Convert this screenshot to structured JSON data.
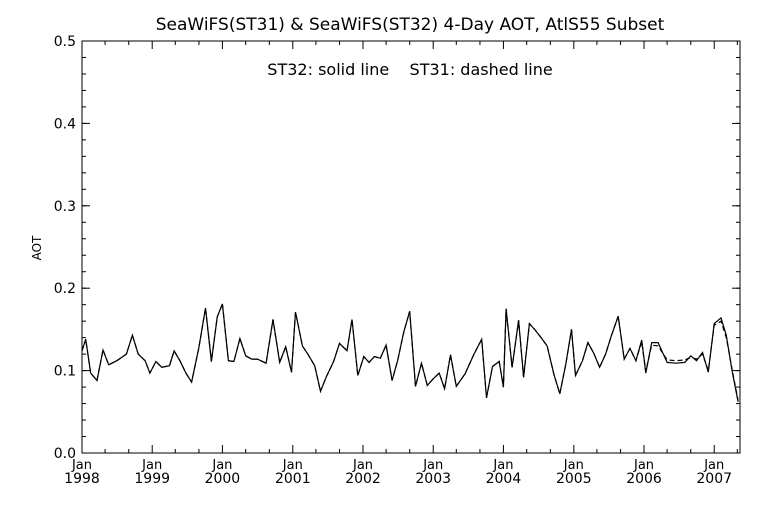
{
  "chart_data": {
    "type": "line",
    "title": "SeaWiFS(ST31) & SeaWiFS(ST32) 4-Day AOT, AtlS55 Subset",
    "annotation": "ST32: solid line    ST31: dashed line",
    "ylabel": "AOT",
    "xlabel": "",
    "ylim": [
      0.0,
      0.5
    ],
    "xlim": [
      "1998-01-01",
      "2007-05-15"
    ],
    "yticks": [
      "0.0",
      "0.1",
      "0.2",
      "0.3",
      "0.4",
      "0.5"
    ],
    "xticks": [
      {
        "month": "Jan",
        "year": "1998",
        "date": "1998-01-01"
      },
      {
        "month": "Jan",
        "year": "1999",
        "date": "1999-01-01"
      },
      {
        "month": "Jan",
        "year": "2000",
        "date": "2000-01-01"
      },
      {
        "month": "Jan",
        "year": "2001",
        "date": "2001-01-01"
      },
      {
        "month": "Jan",
        "year": "2002",
        "date": "2002-01-01"
      },
      {
        "month": "Jan",
        "year": "2003",
        "date": "2003-01-01"
      },
      {
        "month": "Jan",
        "year": "2004",
        "date": "2004-01-01"
      },
      {
        "month": "Jan",
        "year": "2005",
        "date": "2005-01-01"
      },
      {
        "month": "Jan",
        "year": "2006",
        "date": "2006-01-01"
      },
      {
        "month": "Jan",
        "year": "2007",
        "date": "2007-01-01"
      }
    ],
    "grid": false,
    "series": [
      {
        "name": "ST32",
        "style": "solid",
        "color": "#000000",
        "points": [
          [
            "1998-01-01",
            0.124
          ],
          [
            "1998-01-20",
            0.138
          ],
          [
            "1998-02-15",
            0.097
          ],
          [
            "1998-03-20",
            0.088
          ],
          [
            "1998-04-20",
            0.125
          ],
          [
            "1998-05-20",
            0.107
          ],
          [
            "1998-07-01",
            0.112
          ],
          [
            "1998-08-20",
            0.12
          ],
          [
            "1998-09-20",
            0.143
          ],
          [
            "1998-10-20",
            0.12
          ],
          [
            "1998-11-25",
            0.112
          ],
          [
            "1998-12-20",
            0.097
          ],
          [
            "1999-01-20",
            0.111
          ],
          [
            "1999-02-20",
            0.104
          ],
          [
            "1999-04-01",
            0.106
          ],
          [
            "1999-04-25",
            0.124
          ],
          [
            "1999-05-25",
            0.112
          ],
          [
            "1999-06-25",
            0.097
          ],
          [
            "1999-07-25",
            0.086
          ],
          [
            "1999-09-01",
            0.128
          ],
          [
            "1999-10-05",
            0.176
          ],
          [
            "1999-11-05",
            0.111
          ],
          [
            "1999-12-05",
            0.165
          ],
          [
            "2000-01-01",
            0.181
          ],
          [
            "2000-02-01",
            0.112
          ],
          [
            "2000-03-01",
            0.111
          ],
          [
            "2000-04-01",
            0.139
          ],
          [
            "2000-05-01",
            0.118
          ],
          [
            "2000-06-01",
            0.114
          ],
          [
            "2000-07-01",
            0.114
          ],
          [
            "2000-08-15",
            0.109
          ],
          [
            "2000-09-20",
            0.162
          ],
          [
            "2000-10-25",
            0.11
          ],
          [
            "2000-11-25",
            0.129
          ],
          [
            "2000-12-25",
            0.098
          ],
          [
            "2001-01-15",
            0.171
          ],
          [
            "2001-02-20",
            0.13
          ],
          [
            "2001-03-20",
            0.12
          ],
          [
            "2001-04-25",
            0.106
          ],
          [
            "2001-05-25",
            0.075
          ],
          [
            "2001-06-25",
            0.093
          ],
          [
            "2001-08-01",
            0.111
          ],
          [
            "2001-09-01",
            0.133
          ],
          [
            "2001-10-10",
            0.124
          ],
          [
            "2001-11-05",
            0.162
          ],
          [
            "2001-12-05",
            0.094
          ],
          [
            "2002-01-05",
            0.117
          ],
          [
            "2002-02-01",
            0.11
          ],
          [
            "2002-03-01",
            0.117
          ],
          [
            "2002-04-01",
            0.115
          ],
          [
            "2002-05-01",
            0.131
          ],
          [
            "2002-06-01",
            0.088
          ],
          [
            "2002-07-01",
            0.113
          ],
          [
            "2002-08-01",
            0.147
          ],
          [
            "2002-09-01",
            0.172
          ],
          [
            "2002-10-01",
            0.081
          ],
          [
            "2002-11-01",
            0.109
          ],
          [
            "2002-12-01",
            0.082
          ],
          [
            "2003-01-01",
            0.09
          ],
          [
            "2003-02-01",
            0.097
          ],
          [
            "2003-03-01",
            0.078
          ],
          [
            "2003-04-01",
            0.119
          ],
          [
            "2003-05-01",
            0.081
          ],
          [
            "2003-06-15",
            0.096
          ],
          [
            "2003-08-01",
            0.12
          ],
          [
            "2003-09-10",
            0.138
          ],
          [
            "2003-10-05",
            0.067
          ],
          [
            "2003-11-05",
            0.105
          ],
          [
            "2003-12-10",
            0.111
          ],
          [
            "2004-01-01",
            0.08
          ],
          [
            "2004-01-15",
            0.175
          ],
          [
            "2004-02-15",
            0.104
          ],
          [
            "2004-03-20",
            0.161
          ],
          [
            "2004-04-15",
            0.092
          ],
          [
            "2004-05-15",
            0.157
          ],
          [
            "2004-06-15",
            0.149
          ],
          [
            "2004-07-15",
            0.14
          ],
          [
            "2004-08-15",
            0.13
          ],
          [
            "2004-09-20",
            0.095
          ],
          [
            "2004-10-20",
            0.072
          ],
          [
            "2004-11-20",
            0.107
          ],
          [
            "2004-12-20",
            0.15
          ],
          [
            "2005-01-10",
            0.094
          ],
          [
            "2005-02-15",
            0.112
          ],
          [
            "2005-03-15",
            0.134
          ],
          [
            "2005-04-15",
            0.121
          ],
          [
            "2005-05-15",
            0.104
          ],
          [
            "2005-06-15",
            0.12
          ],
          [
            "2005-07-15",
            0.142
          ],
          [
            "2005-08-20",
            0.166
          ],
          [
            "2005-09-20",
            0.114
          ],
          [
            "2005-10-20",
            0.127
          ],
          [
            "2005-11-20",
            0.112
          ],
          [
            "2005-12-20",
            0.137
          ],
          [
            "2006-01-10",
            0.097
          ],
          [
            "2006-02-10",
            0.134
          ],
          [
            "2006-03-15",
            0.134
          ],
          [
            "2006-05-01",
            0.11
          ],
          [
            "2006-06-15",
            0.109
          ],
          [
            "2006-08-01",
            0.11
          ],
          [
            "2006-09-01",
            0.118
          ],
          [
            "2006-10-01",
            0.112
          ],
          [
            "2006-11-01",
            0.122
          ],
          [
            "2006-12-01",
            0.098
          ],
          [
            "2007-01-01",
            0.157
          ],
          [
            "2007-02-05",
            0.164
          ],
          [
            "2007-03-05",
            0.143
          ],
          [
            "2007-04-05",
            0.098
          ],
          [
            "2007-05-05",
            0.062
          ]
        ]
      },
      {
        "name": "ST31",
        "style": "dashed",
        "color": "#000000",
        "points": [
          [
            "1998-01-01",
            0.124
          ],
          [
            "1998-01-20",
            0.138
          ],
          [
            "1998-02-15",
            0.097
          ],
          [
            "1998-03-20",
            0.088
          ],
          [
            "1998-04-20",
            0.125
          ],
          [
            "1998-05-20",
            0.107
          ],
          [
            "1998-07-01",
            0.112
          ],
          [
            "1998-08-20",
            0.12
          ],
          [
            "1998-09-20",
            0.143
          ],
          [
            "1998-10-20",
            0.12
          ],
          [
            "1998-11-25",
            0.112
          ],
          [
            "1998-12-20",
            0.097
          ],
          [
            "1999-01-20",
            0.111
          ],
          [
            "1999-02-20",
            0.104
          ],
          [
            "1999-04-01",
            0.106
          ],
          [
            "1999-04-25",
            0.124
          ],
          [
            "1999-05-25",
            0.112
          ],
          [
            "1999-06-25",
            0.097
          ],
          [
            "1999-07-25",
            0.086
          ],
          [
            "1999-09-01",
            0.128
          ],
          [
            "1999-10-05",
            0.176
          ],
          [
            "1999-11-05",
            0.111
          ],
          [
            "1999-12-05",
            0.165
          ],
          [
            "2000-01-01",
            0.181
          ],
          [
            "2000-02-01",
            0.112
          ],
          [
            "2000-03-01",
            0.111
          ],
          [
            "2000-04-01",
            0.139
          ],
          [
            "2000-05-01",
            0.118
          ],
          [
            "2000-06-01",
            0.114
          ],
          [
            "2000-07-01",
            0.114
          ],
          [
            "2000-08-15",
            0.109
          ],
          [
            "2000-09-20",
            0.162
          ],
          [
            "2000-10-25",
            0.11
          ],
          [
            "2000-11-25",
            0.129
          ],
          [
            "2000-12-25",
            0.098
          ],
          [
            "2001-01-15",
            0.171
          ],
          [
            "2001-02-20",
            0.13
          ],
          [
            "2001-03-20",
            0.12
          ],
          [
            "2001-04-25",
            0.106
          ],
          [
            "2001-05-25",
            0.075
          ],
          [
            "2001-06-25",
            0.093
          ],
          [
            "2001-08-01",
            0.111
          ],
          [
            "2001-09-01",
            0.133
          ],
          [
            "2001-10-10",
            0.124
          ],
          [
            "2001-11-05",
            0.162
          ],
          [
            "2001-12-05",
            0.094
          ],
          [
            "2002-01-05",
            0.117
          ],
          [
            "2002-02-01",
            0.11
          ],
          [
            "2002-03-01",
            0.117
          ],
          [
            "2002-04-01",
            0.115
          ],
          [
            "2002-05-01",
            0.131
          ],
          [
            "2002-06-01",
            0.088
          ],
          [
            "2002-07-01",
            0.113
          ],
          [
            "2002-08-01",
            0.147
          ],
          [
            "2002-09-01",
            0.172
          ],
          [
            "2002-10-01",
            0.081
          ],
          [
            "2002-11-01",
            0.109
          ],
          [
            "2002-12-01",
            0.082
          ],
          [
            "2003-01-01",
            0.09
          ],
          [
            "2003-02-01",
            0.097
          ],
          [
            "2003-03-01",
            0.078
          ],
          [
            "2003-04-01",
            0.119
          ],
          [
            "2003-05-01",
            0.081
          ],
          [
            "2003-06-15",
            0.096
          ],
          [
            "2003-08-01",
            0.12
          ],
          [
            "2003-09-10",
            0.138
          ],
          [
            "2003-10-05",
            0.067
          ],
          [
            "2003-11-05",
            0.105
          ],
          [
            "2003-12-10",
            0.111
          ],
          [
            "2004-01-01",
            0.08
          ],
          [
            "2004-01-15",
            0.175
          ],
          [
            "2004-02-15",
            0.104
          ],
          [
            "2004-03-20",
            0.161
          ],
          [
            "2004-04-15",
            0.092
          ],
          [
            "2004-05-15",
            0.157
          ],
          [
            "2004-06-15",
            0.149
          ],
          [
            "2004-07-15",
            0.14
          ],
          [
            "2004-08-15",
            0.13
          ],
          [
            "2004-09-20",
            0.095
          ],
          [
            "2004-10-20",
            0.072
          ],
          [
            "2004-11-20",
            0.107
          ],
          [
            "2004-12-20",
            0.15
          ],
          [
            "2005-01-10",
            0.094
          ],
          [
            "2005-02-15",
            0.112
          ],
          [
            "2005-03-15",
            0.134
          ],
          [
            "2005-04-15",
            0.121
          ],
          [
            "2005-05-15",
            0.104
          ],
          [
            "2005-06-15",
            0.12
          ],
          [
            "2005-07-15",
            0.142
          ],
          [
            "2005-08-20",
            0.166
          ],
          [
            "2005-09-20",
            0.114
          ],
          [
            "2005-10-20",
            0.127
          ],
          [
            "2005-11-20",
            0.112
          ],
          [
            "2005-12-20",
            0.135
          ],
          [
            "2006-01-10",
            0.099
          ],
          [
            "2006-02-10",
            0.131
          ],
          [
            "2006-03-15",
            0.13
          ],
          [
            "2006-05-01",
            0.113
          ],
          [
            "2006-06-15",
            0.112
          ],
          [
            "2006-08-01",
            0.113
          ],
          [
            "2006-09-01",
            0.116
          ],
          [
            "2006-10-01",
            0.114
          ],
          [
            "2006-11-01",
            0.12
          ],
          [
            "2006-12-01",
            0.1
          ],
          [
            "2007-01-01",
            0.155
          ],
          [
            "2007-02-05",
            0.16
          ],
          [
            "2007-03-05",
            0.14
          ],
          [
            "2007-04-05",
            0.1
          ],
          [
            "2007-05-05",
            0.064
          ]
        ]
      }
    ]
  }
}
